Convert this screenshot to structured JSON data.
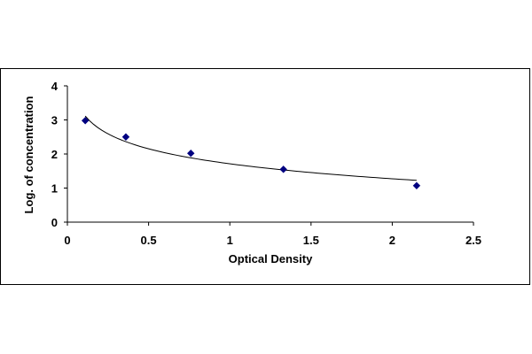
{
  "chart_data": {
    "type": "scatter",
    "title": "",
    "xlabel": "Optical Density",
    "ylabel": "Log. of concentration",
    "xlim": [
      0,
      2.5
    ],
    "ylim": [
      0,
      4
    ],
    "x_ticks": [
      "0",
      "0.5",
      "1",
      "1.5",
      "2",
      "2.5"
    ],
    "y_ticks": [
      "0",
      "1",
      "2",
      "3",
      "4"
    ],
    "grid": false,
    "legend": "none",
    "series": [
      {
        "x": [
          0.11,
          0.36,
          0.76,
          1.33,
          2.15
        ],
        "y": [
          2.98,
          2.5,
          2.02,
          1.55,
          1.07
        ],
        "marker": "diamond",
        "color": "#000080",
        "trendline": "logarithmic"
      }
    ]
  }
}
